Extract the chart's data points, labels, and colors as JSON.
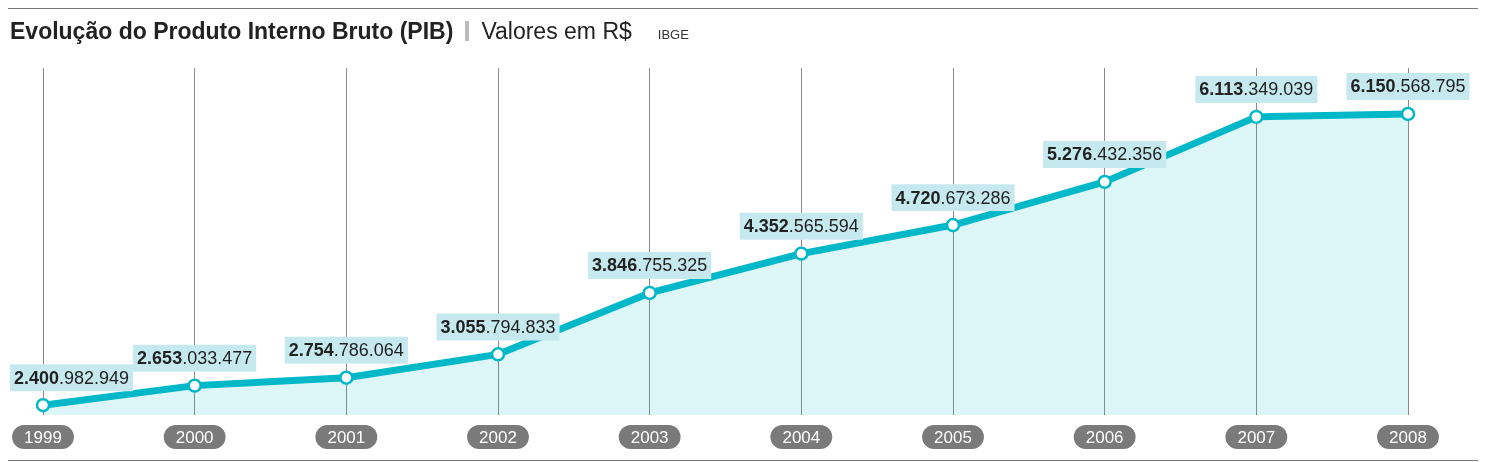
{
  "chart_data": {
    "type": "area",
    "title": "Evolução do Produto Interno Bruto (PIB)",
    "subtitle": "Valores em R$",
    "annotations": [
      "IBGE"
    ],
    "categories": [
      "1999",
      "2000",
      "2001",
      "2002",
      "2003",
      "2004",
      "2005",
      "2006",
      "2007",
      "2008"
    ],
    "values": [
      2400982949,
      2653033477,
      2754786064,
      3055794833,
      3846755325,
      4352565594,
      4720673286,
      5276432356,
      6113349039,
      6150568795
    ],
    "value_labels": [
      "2.400.982.949",
      "2.653.033.477",
      "2.754.786.064",
      "3.055.794.833",
      "3.846.755.325",
      "4.352.565.594",
      "4.720.673.286",
      "5.276.432.356",
      "6.113.349.039",
      "6.150.568.795"
    ],
    "color": "#00b8c8",
    "grid": "x",
    "marker": "circle"
  }
}
